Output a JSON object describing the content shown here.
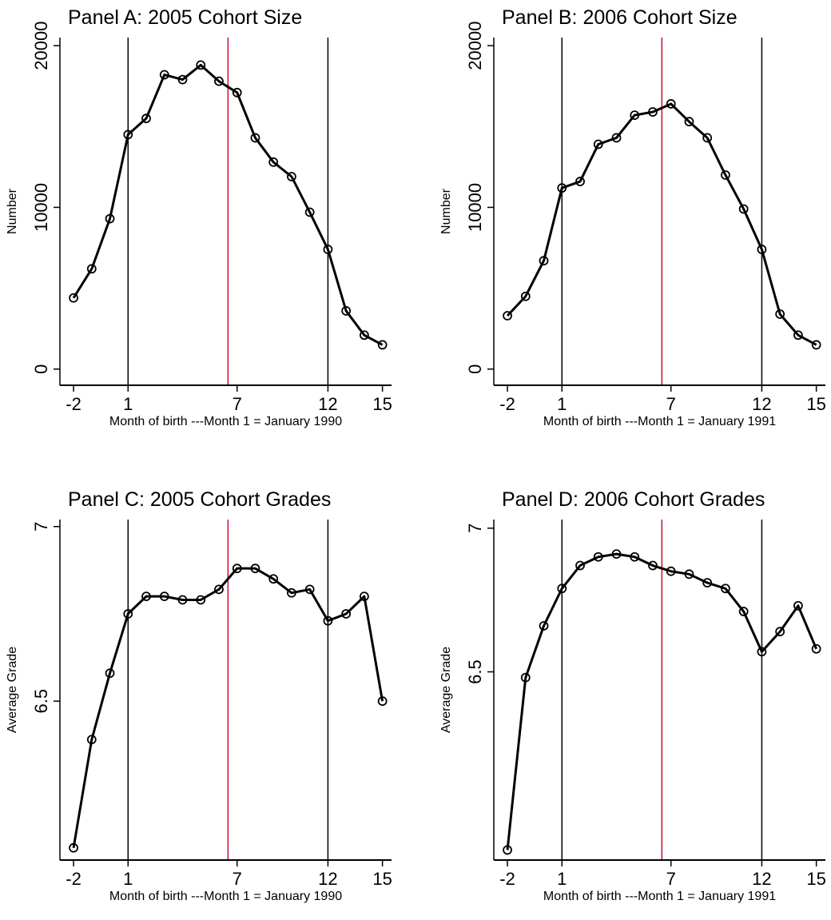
{
  "chart_data": [
    {
      "type": "line",
      "title": "Panel A: 2005 Cohort Size",
      "xlabel": "Month of birth ---Month 1 = January 1990",
      "ylabel": "Number",
      "x": [
        -2,
        -1,
        0,
        1,
        2,
        3,
        4,
        5,
        6,
        7,
        8,
        9,
        10,
        11,
        12,
        13,
        14,
        15
      ],
      "values": [
        4400,
        6200,
        9300,
        14500,
        15500,
        18200,
        17900,
        18800,
        17800,
        17100,
        14300,
        12800,
        11900,
        9700,
        7400,
        3600,
        2100,
        1500
      ],
      "color": "#000000",
      "xlim": [
        -2.75,
        15.5
      ],
      "xticks": [
        -2,
        1,
        7,
        12,
        15
      ],
      "ylim": [
        -1000,
        20500
      ],
      "yticks": [
        0,
        10000,
        20000
      ],
      "reference_lines": [
        {
          "x": 1,
          "color": "#000000"
        },
        {
          "x": 6.5,
          "color": "#c8102e"
        },
        {
          "x": 12,
          "color": "#000000"
        }
      ]
    },
    {
      "type": "line",
      "title": "Panel B: 2006 Cohort Size",
      "xlabel": "Month of birth ---Month 1 = January 1991",
      "ylabel": "Number",
      "x": [
        -2,
        -1,
        0,
        1,
        2,
        3,
        4,
        5,
        6,
        7,
        8,
        9,
        10,
        11,
        12,
        13,
        14,
        15
      ],
      "values": [
        3300,
        4500,
        6700,
        11200,
        11600,
        13900,
        14300,
        15700,
        15900,
        16400,
        15300,
        14300,
        12000,
        9900,
        7400,
        3400,
        2100,
        1500
      ],
      "color": "#000000",
      "xlim": [
        -2.75,
        15.5
      ],
      "xticks": [
        -2,
        1,
        7,
        12,
        15
      ],
      "ylim": [
        -1000,
        20500
      ],
      "yticks": [
        0,
        10000,
        20000
      ],
      "reference_lines": [
        {
          "x": 1,
          "color": "#000000"
        },
        {
          "x": 6.5,
          "color": "#c8102e"
        },
        {
          "x": 12,
          "color": "#000000"
        }
      ]
    },
    {
      "type": "line",
      "title": "Panel C: 2005 Cohort Grades",
      "xlabel": "Month of birth ---Month 1 = January 1990",
      "ylabel": "Average Grade",
      "x": [
        -2,
        -1,
        0,
        1,
        2,
        3,
        4,
        5,
        6,
        7,
        8,
        9,
        10,
        11,
        12,
        13,
        14,
        15
      ],
      "values": [
        6.08,
        6.39,
        6.58,
        6.75,
        6.8,
        6.8,
        6.79,
        6.79,
        6.82,
        6.88,
        6.88,
        6.85,
        6.81,
        6.82,
        6.73,
        6.75,
        6.8,
        6.5
      ],
      "color": "#000000",
      "xlim": [
        -2.75,
        15.5
      ],
      "xticks": [
        -2,
        1,
        7,
        12,
        15
      ],
      "ylim": [
        6.045,
        7.02
      ],
      "yticks": [
        6.5,
        7
      ],
      "reference_lines": [
        {
          "x": 1,
          "color": "#000000"
        },
        {
          "x": 6.5,
          "color": "#c8102e"
        },
        {
          "x": 12,
          "color": "#000000"
        }
      ]
    },
    {
      "type": "line",
      "title": "Panel D: 2006 Cohort Grades",
      "xlabel": "Month of birth ---Month 1 = January 1991",
      "ylabel": "Average Grade",
      "x": [
        -2,
        -1,
        0,
        1,
        2,
        3,
        4,
        5,
        6,
        7,
        8,
        9,
        10,
        11,
        12,
        13,
        14,
        15
      ],
      "values": [
        5.88,
        6.48,
        6.66,
        6.79,
        6.87,
        6.9,
        6.91,
        6.9,
        6.87,
        6.85,
        6.84,
        6.81,
        6.79,
        6.71,
        6.57,
        6.64,
        6.73,
        6.58
      ],
      "color": "#000000",
      "xlim": [
        -2.75,
        15.5
      ],
      "xticks": [
        -2,
        1,
        7,
        12,
        15
      ],
      "ylim": [
        5.845,
        7.03
      ],
      "yticks": [
        6.5,
        7
      ],
      "reference_lines": [
        {
          "x": 1,
          "color": "#000000"
        },
        {
          "x": 6.5,
          "color": "#c8102e"
        },
        {
          "x": 12,
          "color": "#000000"
        }
      ]
    }
  ]
}
